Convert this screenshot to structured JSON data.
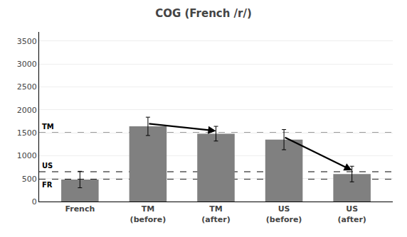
{
  "chart_data": {
    "type": "bar",
    "title": "COG (French /r/)",
    "categories": [
      "French",
      "TM\n(before)",
      "TM\n(after)",
      "US\n(before)",
      "US\n(after)"
    ],
    "values": [
      480,
      1640,
      1480,
      1350,
      600
    ],
    "errors": [
      180,
      200,
      160,
      220,
      170
    ],
    "color": "#808080",
    "ylim": [
      0,
      3700
    ],
    "yticks": [
      0,
      500,
      1000,
      1500,
      2000,
      2500,
      3000,
      3500
    ],
    "grid": true,
    "reference_lines": [
      {
        "value": 1500,
        "label": "TM",
        "line_style": "dashed",
        "label_side": "above"
      },
      {
        "value": 650,
        "label": "US",
        "line_style": "dashed",
        "label_side": "above"
      },
      {
        "value": 490,
        "label": "FR",
        "line_style": "dashed",
        "label_side": "below"
      }
    ],
    "arrows": [
      {
        "from": "TM\n(before)",
        "to": "TM\n(after)",
        "y_start": 1700,
        "y_end": 1540
      },
      {
        "from": "US\n(before)",
        "to": "US\n(after)",
        "y_start": 1410,
        "y_end": 680
      }
    ]
  }
}
